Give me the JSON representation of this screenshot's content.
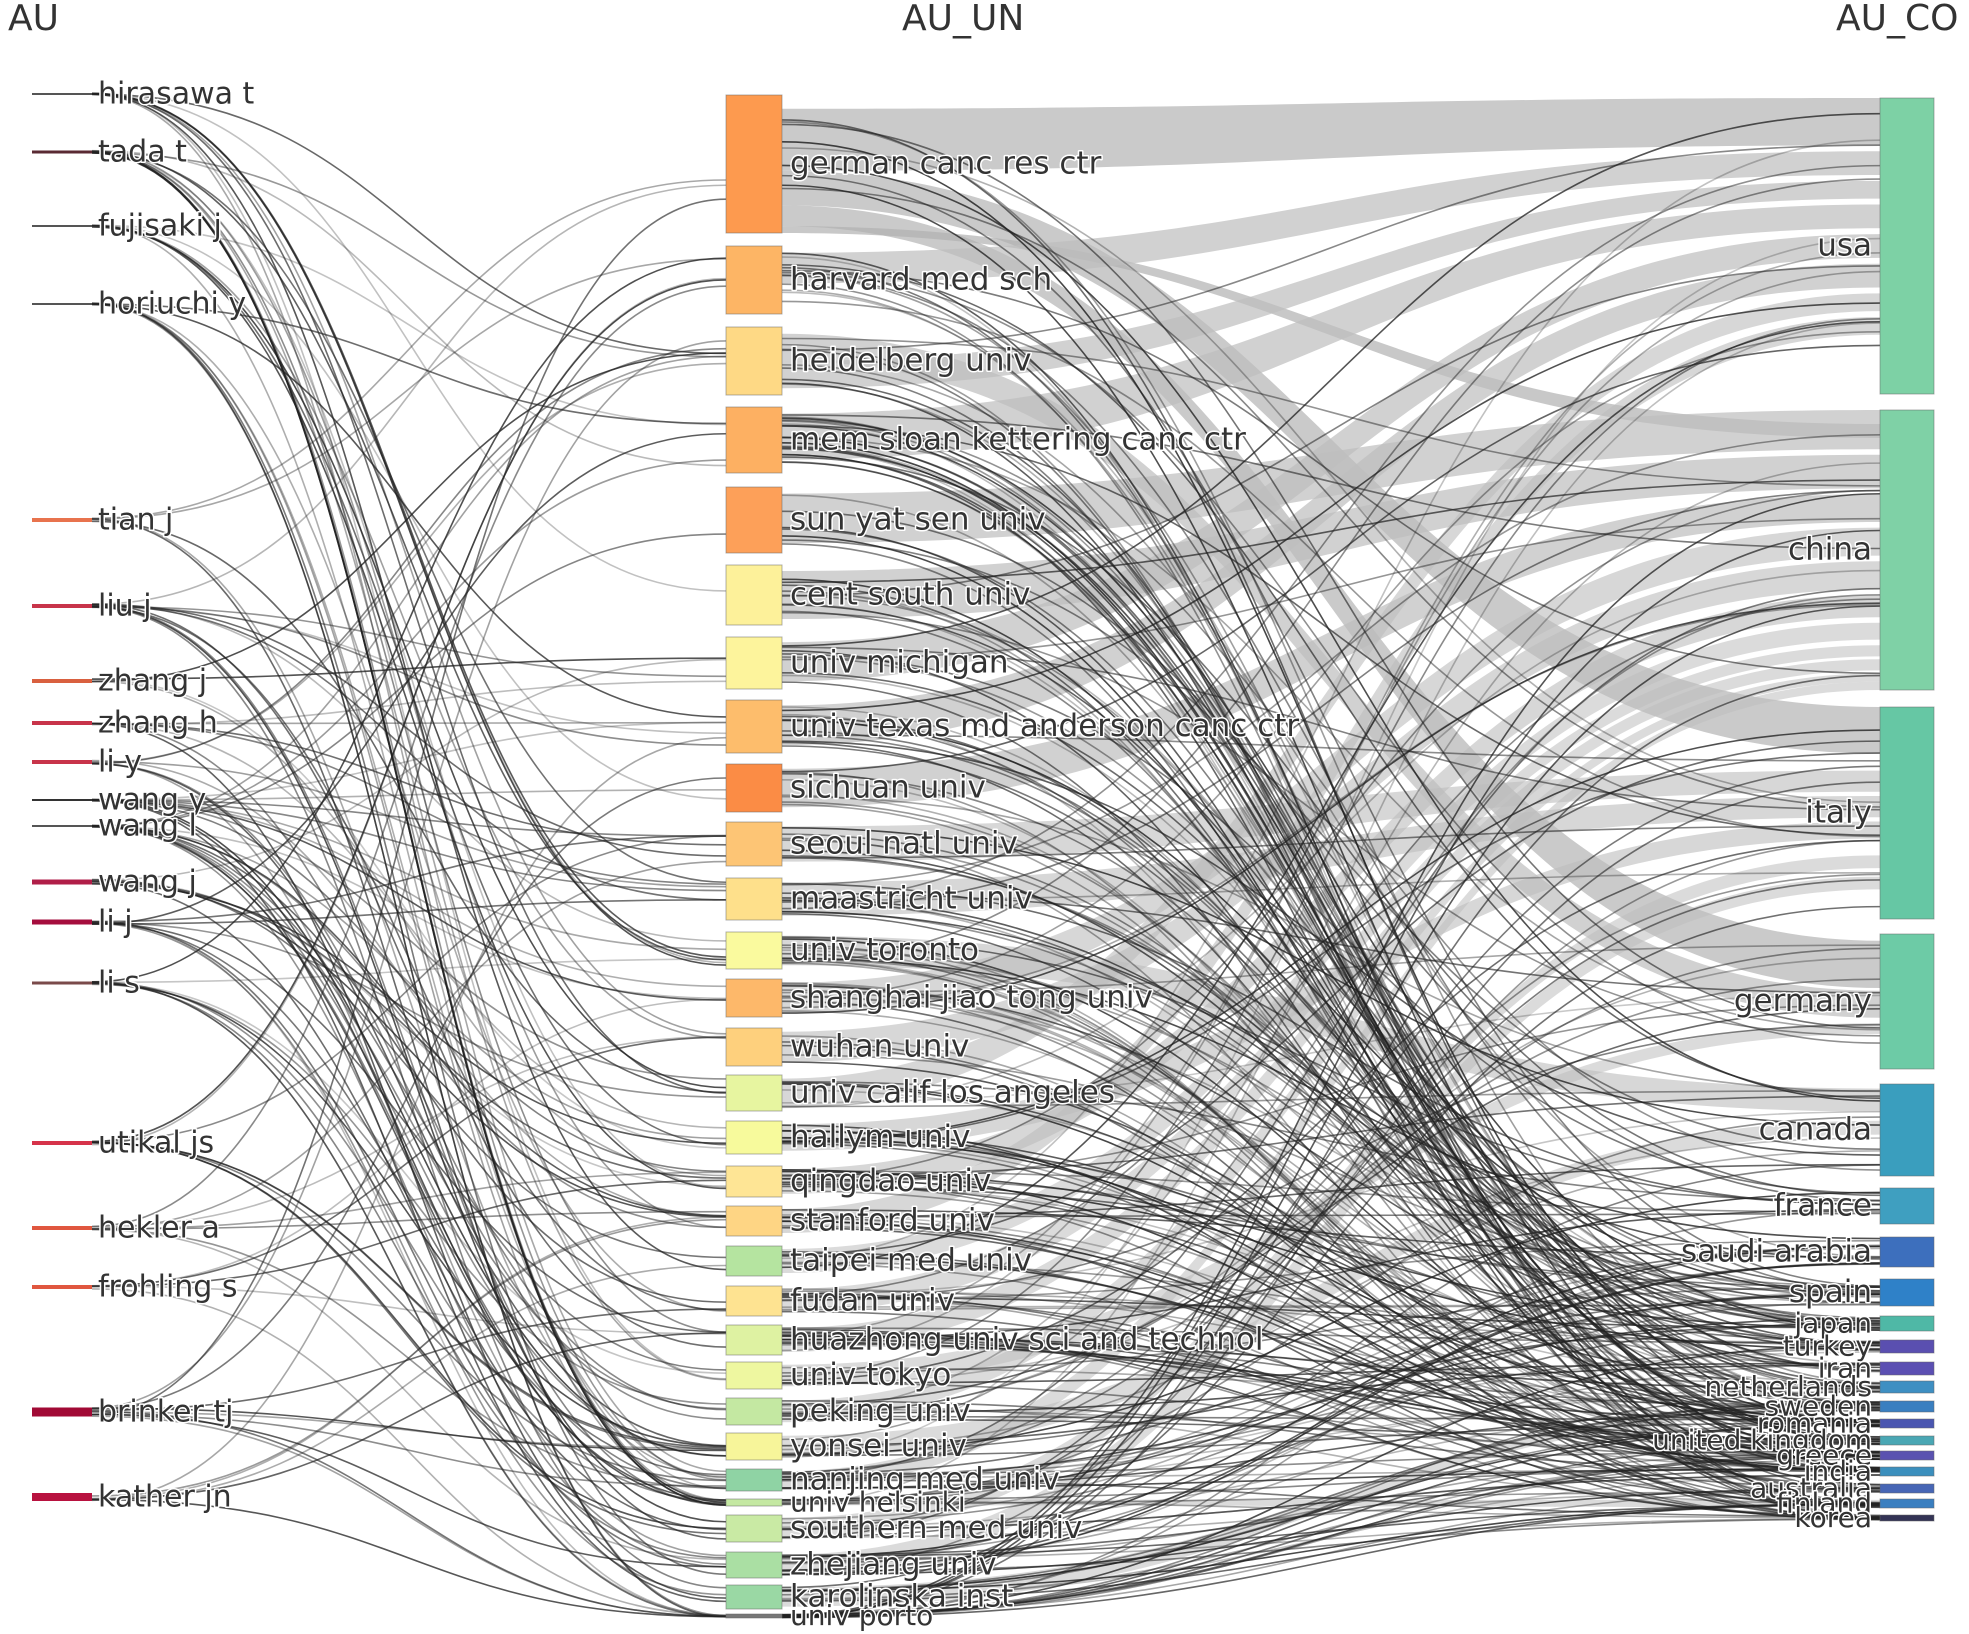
{
  "diagram": {
    "type": "sankey",
    "columns": [
      {
        "key": "au",
        "title": "AU"
      },
      {
        "key": "un",
        "title": "AU_UN"
      },
      {
        "key": "co",
        "title": "AU_CO"
      }
    ],
    "authors": [
      {
        "name": "hirasawa t",
        "color": "#555555"
      },
      {
        "name": "tada t",
        "color": "#5a2a33"
      },
      {
        "name": "fujisaki j",
        "color": "#555555"
      },
      {
        "name": "horiuchi y",
        "color": "#555555"
      },
      {
        "name": "tian j",
        "color": "#e8734d"
      },
      {
        "name": "liu j",
        "color": "#c8344a"
      },
      {
        "name": "zhang j",
        "color": "#d9603f"
      },
      {
        "name": "zhang h",
        "color": "#c8344a"
      },
      {
        "name": "li y",
        "color": "#c8344a"
      },
      {
        "name": "wang y",
        "color": "#333333"
      },
      {
        "name": "wang l",
        "color": "#555555"
      },
      {
        "name": "wang j",
        "color": "#b01e48"
      },
      {
        "name": "li j",
        "color": "#a50d3d"
      },
      {
        "name": "li s",
        "color": "#7a4a4a"
      },
      {
        "name": "utikal js",
        "color": "#d6334a"
      },
      {
        "name": "hekler a",
        "color": "#e0573f"
      },
      {
        "name": "frohling s",
        "color": "#e0573f"
      },
      {
        "name": "brinker tj",
        "color": "#a10a35"
      },
      {
        "name": "kather jn",
        "color": "#b8123f"
      }
    ],
    "universities": [
      {
        "name": "german canc res ctr",
        "color": "#fd9a4f"
      },
      {
        "name": "harvard med sch",
        "color": "#fdb565"
      },
      {
        "name": "heidelberg univ",
        "color": "#fed985"
      },
      {
        "name": "mem sloan kettering canc ctr",
        "color": "#fdb062"
      },
      {
        "name": "sun yat sen univ",
        "color": "#fda059"
      },
      {
        "name": "cent south univ",
        "color": "#fdf19a"
      },
      {
        "name": "univ michigan",
        "color": "#fdf49c"
      },
      {
        "name": "univ texas md anderson canc ctr",
        "color": "#fdbd6c"
      },
      {
        "name": "sichuan univ",
        "color": "#fb8c45"
      },
      {
        "name": "seoul natl univ",
        "color": "#fdc575"
      },
      {
        "name": "maastricht univ",
        "color": "#fee08b"
      },
      {
        "name": "univ toronto",
        "color": "#fafa9e"
      },
      {
        "name": "shanghai jiao tong univ",
        "color": "#fdb86a"
      },
      {
        "name": "wuhan univ",
        "color": "#fed07d"
      },
      {
        "name": "univ calif los angeles",
        "color": "#e7f5a0"
      },
      {
        "name": "hallym univ",
        "color": "#f7fa9c"
      },
      {
        "name": "qingdao univ",
        "color": "#fee595"
      },
      {
        "name": "stanford univ",
        "color": "#fed584"
      },
      {
        "name": "taipei med univ",
        "color": "#b5e4a0"
      },
      {
        "name": "fudan univ",
        "color": "#fee391"
      },
      {
        "name": "huazhong univ sci and technol",
        "color": "#def2a2"
      },
      {
        "name": "univ tokyo",
        "color": "#eef7a0"
      },
      {
        "name": "peking univ",
        "color": "#c4e8a2"
      },
      {
        "name": "yonsei univ",
        "color": "#f7f59a"
      },
      {
        "name": "nanjing med univ",
        "color": "#8fd3a4"
      },
      {
        "name": "univ helsinki",
        "color": "#c4e8a2"
      },
      {
        "name": "southern med univ",
        "color": "#c9eaa4"
      },
      {
        "name": "zhejiang univ",
        "color": "#aadfa3"
      },
      {
        "name": "karolinska inst",
        "color": "#9ad8a4"
      },
      {
        "name": "univ porto",
        "color": "#777777"
      }
    ],
    "countries": [
      {
        "name": "usa",
        "color": "#7dd1a5"
      },
      {
        "name": "china",
        "color": "#7fd1a6"
      },
      {
        "name": "italy",
        "color": "#66c7a4"
      },
      {
        "name": "germany",
        "color": "#6dcba6"
      },
      {
        "name": "canada",
        "color": "#3a9ebe"
      },
      {
        "name": "france",
        "color": "#3f9fc0"
      },
      {
        "name": "saudi arabia",
        "color": "#3d6fbd"
      },
      {
        "name": "spain",
        "color": "#2f81c8"
      },
      {
        "name": "japan",
        "color": "#4fb8a6"
      },
      {
        "name": "turkey",
        "color": "#5a4fb0"
      },
      {
        "name": "iran",
        "color": "#5b4fb2"
      },
      {
        "name": "netherlands",
        "color": "#3e8fc2"
      },
      {
        "name": "sweden",
        "color": "#3a7fc0"
      },
      {
        "name": "romania",
        "color": "#4a56b0"
      },
      {
        "name": "united kingdom",
        "color": "#4aa7b4"
      },
      {
        "name": "greece",
        "color": "#5a52b0"
      },
      {
        "name": "india",
        "color": "#3b8fbd"
      },
      {
        "name": "australia",
        "color": "#4766b5"
      },
      {
        "name": "finland",
        "color": "#3a7fc0"
      },
      {
        "name": "korea",
        "color": "#333355"
      }
    ]
  }
}
